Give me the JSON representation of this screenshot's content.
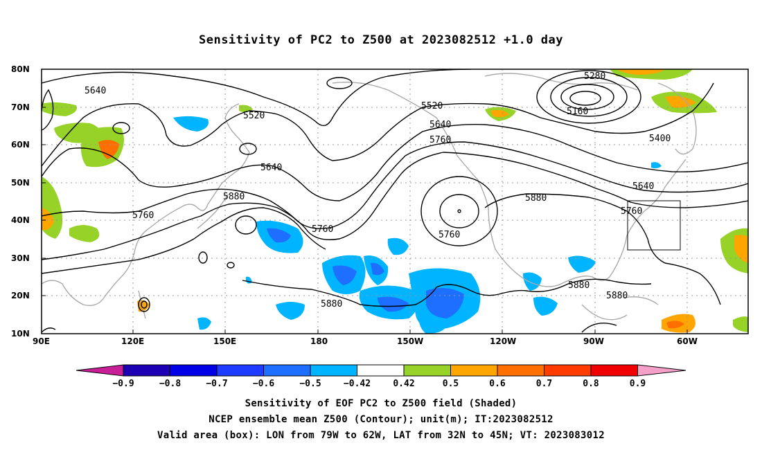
{
  "title": "Sensitivity of PC2 to Z500 at 2023082512 +1.0 day",
  "map": {
    "lon_range": [
      "90E",
      "50W"
    ],
    "lat_range": [
      "10N",
      "80N"
    ],
    "lat_labels": [
      "80N",
      "70N",
      "60N",
      "50N",
      "40N",
      "30N",
      "20N",
      "10N"
    ],
    "lon_labels": [
      "90E",
      "120E",
      "150E",
      "180",
      "150W",
      "120W",
      "90W",
      "60W"
    ],
    "gridlines": "dotted",
    "contour_color": "#000000",
    "coastline_color": "#aaaaaa",
    "contour_labels": [
      "5640",
      "5520",
      "5520",
      "5640",
      "5760",
      "5880",
      "5760",
      "5640",
      "5760",
      "5280",
      "5160",
      "5400",
      "5640",
      "5760",
      "5880",
      "5760",
      "5880",
      "5880",
      "5880"
    ],
    "valid_box": {
      "lon_min": "79W",
      "lon_max": "62W",
      "lat_min": "32N",
      "lat_max": "45N"
    }
  },
  "colorbar": {
    "colors": [
      "#c81e96",
      "#1e00b4",
      "#0000e6",
      "#1e3cff",
      "#1e6eff",
      "#00b4ff",
      "#ffffff",
      "#96d228",
      "#ffa500",
      "#ff6e00",
      "#ff3c00",
      "#f00000",
      "#f5a0c8"
    ],
    "labels": [
      "−0.9",
      "−0.8",
      "−0.7",
      "−0.6",
      "−0.5",
      "−0.42",
      "0.42",
      "0.5",
      "0.6",
      "0.7",
      "0.8",
      "0.9"
    ]
  },
  "caption": {
    "line1": "Sensitivity of EOF PC2 to Z500 field (Shaded)",
    "line2": "NCEP ensemble mean Z500 (Contour); unit(m); IT:2023082512",
    "line3": "Valid area (box): LON from 79W to 62W, LAT from 32N to 45N; VT: 2023083012"
  }
}
